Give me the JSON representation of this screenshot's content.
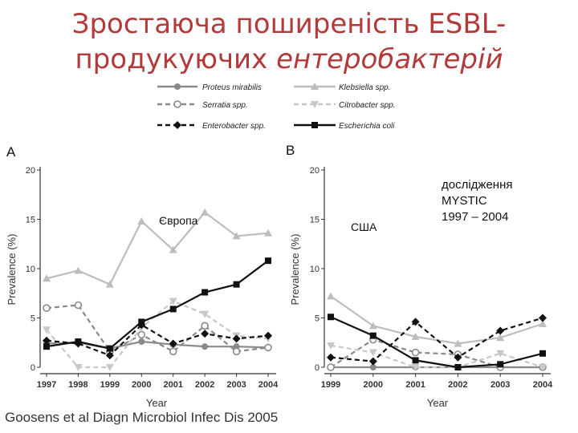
{
  "title": {
    "line1": "Зростаюча поширеність ESBL-",
    "line2_prefix": "продукуючих ",
    "line2_italic": "ентеробактерій"
  },
  "notes": {
    "europe": "Європа",
    "usa": "США",
    "study_line1": "дослідження",
    "study_line2": "MYSTIC",
    "study_line3": "1997 – 2004"
  },
  "caption": "Goosens et al Diagn Microbiol Infec Dis 2005",
  "legend": [
    {
      "name": "Proteus mirabilis",
      "color": "#8a8a8a",
      "dash": "solid",
      "marker": "circle"
    },
    {
      "name": "Klebsiella spp.",
      "color": "#bdbdbd",
      "dash": "solid",
      "marker": "triangle-up"
    },
    {
      "name": "Serratia spp.",
      "color": "#8a8a8a",
      "dash": "dashed",
      "marker": "open-circle"
    },
    {
      "name": "Citrobacter spp.",
      "color": "#c8c8c8",
      "dash": "dashed",
      "marker": "triangle-down"
    },
    {
      "name": "Enterobacter spp.",
      "color": "#111111",
      "dash": "dashed",
      "marker": "diamond"
    },
    {
      "name": "Escherichia coli",
      "color": "#111111",
      "dash": "solid",
      "marker": "square"
    }
  ],
  "chart_data": [
    {
      "type": "line",
      "panel": "A",
      "xlabel": "Year",
      "ylabel": "Prevalence (%)",
      "ylim": [
        0,
        20
      ],
      "yticks": [
        0,
        5,
        10,
        15,
        20
      ],
      "categories": [
        "1997",
        "1998",
        "1999",
        "2000",
        "2001",
        "2002",
        "2003",
        "2004"
      ],
      "series": [
        {
          "name": "Proteus mirabilis",
          "values": [
            2.4,
            2.5,
            1.9,
            2.6,
            2.3,
            2.1,
            2.1,
            2.0
          ]
        },
        {
          "name": "Klebsiella spp.",
          "values": [
            9.0,
            9.8,
            8.4,
            14.8,
            11.9,
            15.7,
            13.3,
            13.6
          ]
        },
        {
          "name": "Serratia spp.",
          "values": [
            6.0,
            6.3,
            1.6,
            3.3,
            1.6,
            4.2,
            1.6,
            2.0
          ]
        },
        {
          "name": "Citrobacter spp.",
          "values": [
            3.8,
            0.0,
            0.0,
            4.0,
            6.7,
            5.4,
            3.2,
            2.9
          ]
        },
        {
          "name": "Enterobacter spp.",
          "values": [
            2.7,
            2.4,
            1.2,
            4.3,
            2.4,
            3.4,
            2.9,
            3.2
          ]
        },
        {
          "name": "Escherichia coli",
          "values": [
            2.1,
            2.6,
            1.9,
            4.6,
            5.9,
            7.6,
            8.4,
            10.8
          ]
        }
      ]
    },
    {
      "type": "line",
      "panel": "B",
      "xlabel": "Year",
      "ylabel": "Prevalence (%)",
      "ylim": [
        0,
        20
      ],
      "yticks": [
        0,
        5,
        10,
        15,
        20
      ],
      "categories": [
        "1999",
        "2000",
        "2001",
        "2002",
        "2003",
        "2004"
      ],
      "series": [
        {
          "name": "Proteus mirabilis",
          "values": [
            0.0,
            0.0,
            0.0,
            0.0,
            0.0,
            0.0
          ]
        },
        {
          "name": "Klebsiella spp.",
          "values": [
            7.2,
            4.2,
            3.1,
            2.4,
            3.0,
            4.4
          ]
        },
        {
          "name": "Serratia spp.",
          "values": [
            0.0,
            2.8,
            1.5,
            1.3,
            0.0,
            0.0
          ]
        },
        {
          "name": "Citrobacter spp.",
          "values": [
            2.2,
            1.5,
            0.0,
            0.0,
            1.4,
            0.0
          ]
        },
        {
          "name": "Enterobacter spp.",
          "values": [
            1.0,
            0.6,
            4.6,
            1.0,
            3.7,
            5.0
          ]
        },
        {
          "name": "Escherichia coli",
          "values": [
            5.1,
            3.2,
            0.7,
            0.0,
            0.3,
            1.4
          ]
        }
      ]
    }
  ]
}
